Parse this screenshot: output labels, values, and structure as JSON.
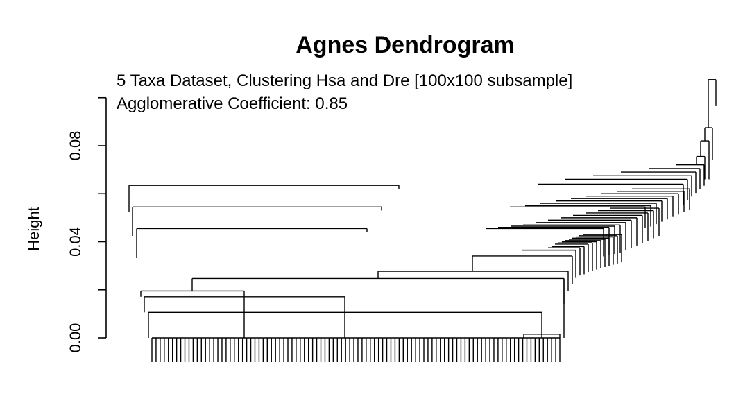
{
  "chart_data": {
    "type": "dendrogram",
    "title": "Agnes Dendrogram",
    "annotations": [
      "5 Taxa Dataset, Clustering Hsa and Dre [100x100 subsample]",
      "Agglomerative Coefficient: 0.85"
    ],
    "ylabel": "Height",
    "ylim": [
      0,
      0.115
    ],
    "yticks": [
      0.0,
      0.02,
      0.04,
      0.06,
      0.08,
      0.1
    ],
    "ytick_labels": [
      "0.00",
      "",
      "0.04",
      "",
      "0.08",
      ""
    ],
    "leaf_count": 100,
    "merges": [
      {
        "left": [
          2,
          11
        ],
        "right": [
          12,
          31
        ],
        "height": 0.0195
      },
      {
        "left": [
          2,
          31
        ],
        "right": [
          32,
          50
        ],
        "height": 0.0171
      },
      {
        "left": [
          2,
          50
        ],
        "right": [
          51,
          100
        ],
        "height": 0.0106
      },
      {
        "left": [
          51,
          93
        ],
        "right": [
          94,
          100
        ],
        "height": 0.0015
      },
      {
        "left": [
          34,
          60
        ],
        "right": [
          61,
          100
        ],
        "height": 0.0247
      },
      {
        "left": [
          61,
          80
        ],
        "right": [
          81,
          100
        ],
        "height": 0.0277
      },
      {
        "left": [
          81,
          96
        ],
        "right": [
          97,
          100
        ],
        "height": 0.0341
      },
      {
        "left": [
          97,
          100
        ],
        "right": [
          101,
          115
        ],
        "height": 0.0365
      },
      {
        "left": [
          101,
          108
        ],
        "right": [
          109,
          120
        ],
        "height": 0.0385
      },
      {
        "left": [
          1,
          56
        ],
        "right": [
          57,
          135
        ],
        "height": 0.0625
      },
      {
        "left": [
          1,
          51
        ],
        "right": [
          52,
          130
        ],
        "height": 0.0545
      },
      {
        "left": [
          1,
          51
        ],
        "right": [
          52,
          125
        ],
        "height": 0.0445
      },
      {
        "left": [
          120,
          150
        ],
        "right": [
          151,
          157
        ],
        "height": 0.0875
      }
    ],
    "top_merge_height": 0.1075,
    "grid": false
  }
}
